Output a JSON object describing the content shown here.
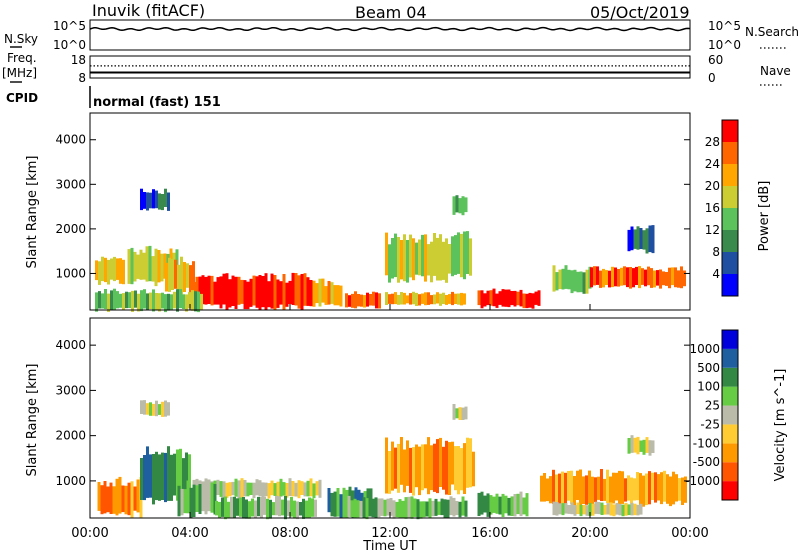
{
  "header": {
    "station": "Inuvik (fitACF)",
    "beam": "Beam 04",
    "date": "05/Oct/2019"
  },
  "mode_label": "normal (fast) 151",
  "left_labels": {
    "nsky": "N.Sky",
    "freq": "Freq.",
    "freq_unit": "[MHz]",
    "cpid": "CPID"
  },
  "right_labels": {
    "nsearch": "N.Search",
    "nave": "Nave"
  },
  "colors": {
    "power": [
      "#0000ff",
      "#1f4fa0",
      "#3b8a4d",
      "#5cc25c",
      "#cccc33",
      "#ffa600",
      "#ff6600",
      "#ff0000"
    ],
    "velocity": [
      "#ff0000",
      "#ff5500",
      "#ff9900",
      "#ffcc33",
      "#bbbbaa",
      "#66cc44",
      "#338844",
      "#1f5fa0",
      "#0000dd"
    ]
  },
  "chart_data": [
    {
      "type": "line",
      "title": "N.Sky / N.Search",
      "yticks_left": [
        "10^5",
        "10^0"
      ],
      "yticks_right": [
        "10^5",
        "10^0"
      ],
      "series": [
        {
          "name": "N.Sky",
          "style": "solid",
          "approx_level_log10": 3.5
        },
        {
          "name": "N.Search",
          "style": "dotted"
        }
      ]
    },
    {
      "type": "line",
      "title": "Freq. / Nave",
      "ylim_left": [
        8,
        18
      ],
      "yticks_left": [
        18,
        8
      ],
      "ylim_right": [
        0,
        60
      ],
      "yticks_right": [
        60,
        0
      ],
      "series": [
        {
          "name": "Freq. [MHz]",
          "style": "solid",
          "value": 10.5
        },
        {
          "name": "Nave",
          "style": "dotted",
          "value": 33
        }
      ]
    },
    {
      "type": "heatmap",
      "quantity": "Power [dB]",
      "xlabel": "Time UT",
      "ylabel": "Slant Range [km]",
      "yticks": [
        1000,
        2000,
        3000,
        4000
      ],
      "ylim": [
        180,
        4600
      ],
      "xlim_hours": [
        0,
        24
      ],
      "colorbar_ticks": [
        4,
        8,
        12,
        16,
        20,
        24,
        28
      ],
      "regions": [
        {
          "t0": 4.1,
          "t1": 8.9,
          "r0": 250,
          "r1": 900,
          "level": 7
        },
        {
          "t0": 8.9,
          "t1": 10.0,
          "r0": 300,
          "r1": 800,
          "level": 5
        },
        {
          "t0": 10.2,
          "t1": 11.6,
          "r0": 250,
          "r1": 550,
          "level": 6
        },
        {
          "t0": 11.8,
          "t1": 15.0,
          "r0": 300,
          "r1": 550,
          "level": 5
        },
        {
          "t0": 15.5,
          "t1": 18.0,
          "r0": 250,
          "r1": 600,
          "level": 7
        },
        {
          "t0": 0.2,
          "t1": 1.4,
          "r0": 800,
          "r1": 1300,
          "level": 5
        },
        {
          "t0": 1.5,
          "t1": 3.5,
          "r0": 800,
          "r1": 1500,
          "level": 4
        },
        {
          "t0": 3.0,
          "t1": 4.2,
          "r0": 600,
          "r1": 1300,
          "level": 5
        },
        {
          "t0": 11.8,
          "t1": 15.2,
          "r0": 900,
          "r1": 1800,
          "level": 4
        },
        {
          "t0": 18.5,
          "t1": 20.0,
          "r0": 600,
          "r1": 1100,
          "level": 3
        },
        {
          "t0": 20.0,
          "t1": 23.8,
          "r0": 700,
          "r1": 1100,
          "level": 6
        },
        {
          "t0": 2.0,
          "t1": 3.2,
          "r0": 2450,
          "r1": 2850,
          "level": 1
        },
        {
          "t0": 14.5,
          "t1": 15.0,
          "r0": 2350,
          "r1": 2700,
          "level": 3
        },
        {
          "t0": 21.5,
          "t1": 22.5,
          "r0": 1500,
          "r1": 2000,
          "level": 1
        },
        {
          "t0": 0.2,
          "t1": 4.5,
          "r0": 180,
          "r1": 600,
          "level": 3
        }
      ]
    },
    {
      "type": "heatmap",
      "quantity": "Velocity [m s^-1]",
      "xlabel": "Time UT",
      "ylabel": "Slant Range [km]",
      "yticks": [
        1000,
        2000,
        3000,
        4000
      ],
      "ylim": [
        180,
        4600
      ],
      "xlim_hours": [
        0,
        24
      ],
      "xtick_labels": [
        "00:00",
        "04:00",
        "08:00",
        "12:00",
        "16:00",
        "20:00",
        "00:00"
      ],
      "colorbar_ticks": [
        -1000,
        -500,
        -100,
        -25,
        25,
        100,
        500,
        1000
      ],
      "regions": [
        {
          "t0": 4.1,
          "t1": 9.2,
          "r0": 650,
          "r1": 1000,
          "level": 4
        },
        {
          "t0": 0.3,
          "t1": 2.0,
          "r0": 250,
          "r1": 1000,
          "level": 2
        },
        {
          "t0": 2.0,
          "t1": 4.0,
          "r0": 600,
          "r1": 1600,
          "level": 6
        },
        {
          "t0": 3.5,
          "t1": 5.0,
          "r0": 250,
          "r1": 900,
          "level": 5
        },
        {
          "t0": 5.0,
          "t1": 9.0,
          "r0": 200,
          "r1": 600,
          "level": 5
        },
        {
          "t0": 9.5,
          "t1": 11.2,
          "r0": 250,
          "r1": 800,
          "level": 6
        },
        {
          "t0": 11.8,
          "t1": 15.3,
          "r0": 800,
          "r1": 1800,
          "level": 2
        },
        {
          "t0": 10.3,
          "t1": 15.0,
          "r0": 200,
          "r1": 600,
          "level": 5
        },
        {
          "t0": 15.5,
          "t1": 17.5,
          "r0": 250,
          "r1": 700,
          "level": 5
        },
        {
          "t0": 18.0,
          "t1": 23.8,
          "r0": 500,
          "r1": 1150,
          "level": 2
        },
        {
          "t0": 18.5,
          "t1": 22.0,
          "r0": 250,
          "r1": 500,
          "level": 4
        },
        {
          "t0": 2.0,
          "t1": 3.2,
          "r0": 2450,
          "r1": 2750,
          "level": 4
        },
        {
          "t0": 14.5,
          "t1": 15.0,
          "r0": 2350,
          "r1": 2650,
          "level": 4
        },
        {
          "t0": 21.5,
          "t1": 22.5,
          "r0": 1600,
          "r1": 1950,
          "level": 4
        }
      ]
    }
  ]
}
